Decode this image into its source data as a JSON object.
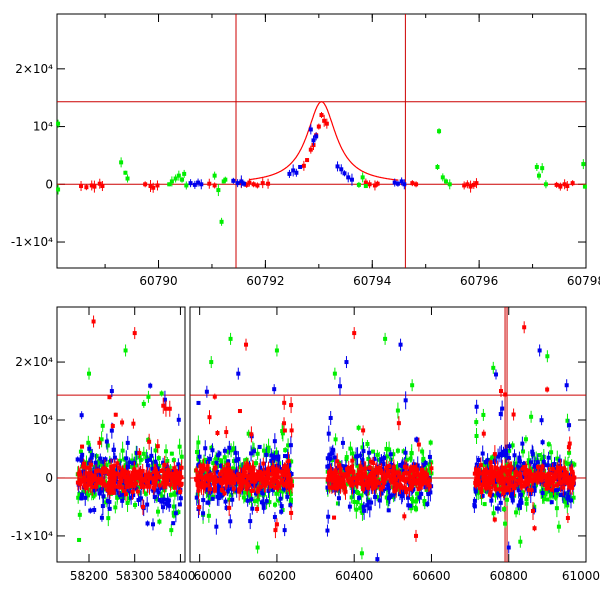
{
  "colors": {
    "red": "#ff0000",
    "green": "#00ee00",
    "blue": "#0000ee",
    "axis": "#000000",
    "guide": "#cc0000"
  },
  "chart_data": [
    {
      "id": "zoom",
      "type": "scatter",
      "title": "",
      "xlabel": "",
      "ylabel": "",
      "xlim": [
        60788.1,
        60798.0
      ],
      "ylim": [
        -14500,
        29500
      ],
      "x_ticks": [
        {
          "value": 60790,
          "label": "60790"
        },
        {
          "value": 60792,
          "label": "60792"
        },
        {
          "value": 60794,
          "label": "60794"
        },
        {
          "value": 60796,
          "label": "60796"
        },
        {
          "value": 60798,
          "label": "60798"
        }
      ],
      "y_ticks": [
        {
          "value": 20000,
          "label": "2×10⁴"
        },
        {
          "value": 10000,
          "label": "10⁴"
        },
        {
          "value": 0,
          "label": "0"
        },
        {
          "value": -10000,
          "label": "-1×10⁴"
        }
      ],
      "hlines": [
        0,
        14300
      ],
      "vlines": [
        60791.45,
        60794.62
      ],
      "model_curve": {
        "name": "microlensing fit",
        "t0": 60793.05,
        "peak": 14300,
        "baseline": 0,
        "tE": 0.42
      },
      "series": [
        {
          "name": "red",
          "points": [
            [
              60788.55,
              -300
            ],
            [
              60788.65,
              -500
            ],
            [
              60788.75,
              -200
            ],
            [
              60788.8,
              -400
            ],
            [
              60788.9,
              100
            ],
            [
              60788.95,
              -300
            ],
            [
              60789.75,
              0
            ],
            [
              60789.85,
              -300
            ],
            [
              60789.9,
              -600
            ],
            [
              60789.98,
              -200
            ],
            [
              60790.95,
              100
            ],
            [
              60791.05,
              -200
            ],
            [
              60791.55,
              200
            ],
            [
              60791.65,
              -100
            ],
            [
              60791.7,
              300
            ],
            [
              60791.78,
              0
            ],
            [
              60791.85,
              -200
            ],
            [
              60791.95,
              200
            ],
            [
              60792.05,
              100
            ],
            [
              60792.72,
              3200
            ],
            [
              60792.78,
              4200
            ],
            [
              60792.85,
              6000
            ],
            [
              60792.9,
              6800
            ],
            [
              60792.95,
              8500
            ],
            [
              60793.0,
              10000
            ],
            [
              60793.05,
              12000
            ],
            [
              60793.1,
              11000
            ],
            [
              60793.15,
              10500
            ],
            [
              60793.88,
              300
            ],
            [
              60793.95,
              0
            ],
            [
              60794.05,
              -200
            ],
            [
              60794.1,
              100
            ],
            [
              60794.75,
              200
            ],
            [
              60794.82,
              0
            ],
            [
              60795.72,
              -200
            ],
            [
              60795.78,
              0
            ],
            [
              60795.84,
              -400
            ],
            [
              60795.9,
              -100
            ],
            [
              60795.95,
              200
            ],
            [
              60797.45,
              -100
            ],
            [
              60797.52,
              -400
            ],
            [
              60797.6,
              0
            ],
            [
              60797.65,
              -300
            ],
            [
              60797.75,
              200
            ]
          ]
        },
        {
          "name": "green",
          "points": [
            [
              60788.12,
              10500
            ],
            [
              60788.12,
              -900
            ],
            [
              60789.3,
              3800
            ],
            [
              60789.38,
              2000
            ],
            [
              60789.42,
              1000
            ],
            [
              60790.2,
              0
            ],
            [
              60790.25,
              500
            ],
            [
              60790.32,
              1000
            ],
            [
              60790.38,
              1500
            ],
            [
              60790.44,
              800
            ],
            [
              60790.48,
              1800
            ],
            [
              60790.52,
              -200
            ],
            [
              60791.05,
              1500
            ],
            [
              60791.12,
              -1000
            ],
            [
              60791.18,
              -6500
            ],
            [
              60791.22,
              500
            ],
            [
              60791.25,
              800
            ],
            [
              60793.75,
              -100
            ],
            [
              60793.82,
              1200
            ],
            [
              60793.88,
              -300
            ],
            [
              60795.22,
              3000
            ],
            [
              60795.25,
              9200
            ],
            [
              60795.32,
              1200
            ],
            [
              60795.38,
              500
            ],
            [
              60795.45,
              0
            ],
            [
              60797.08,
              3000
            ],
            [
              60797.12,
              1500
            ],
            [
              60797.18,
              2800
            ],
            [
              60797.25,
              0
            ],
            [
              60797.95,
              3500
            ],
            [
              60797.98,
              -400
            ]
          ]
        },
        {
          "name": "blue",
          "points": [
            [
              60790.6,
              200
            ],
            [
              60790.68,
              -100
            ],
            [
              60790.74,
              300
            ],
            [
              60790.8,
              0
            ],
            [
              60791.4,
              600
            ],
            [
              60791.48,
              200
            ],
            [
              60791.55,
              500
            ],
            [
              60791.6,
              100
            ],
            [
              60792.45,
              1800
            ],
            [
              60792.52,
              2400
            ],
            [
              60792.58,
              2000
            ],
            [
              60792.65,
              3000
            ],
            [
              60792.85,
              9500
            ],
            [
              60792.9,
              7600
            ],
            [
              60792.95,
              8300
            ],
            [
              60793.35,
              3100
            ],
            [
              60793.42,
              2600
            ],
            [
              60793.48,
              1900
            ],
            [
              60793.55,
              1200
            ],
            [
              60793.62,
              800
            ],
            [
              60794.42,
              300
            ],
            [
              60794.48,
              100
            ],
            [
              60794.55,
              500
            ],
            [
              60794.6,
              0
            ]
          ]
        }
      ]
    },
    {
      "id": "full",
      "type": "scatter",
      "title": "",
      "xlabel": "",
      "ylabel": "",
      "xlim": [
        58130,
        61000
      ],
      "ylim": [
        -14500,
        29500
      ],
      "broken_axis": {
        "gap_after": 58410,
        "gap_resume": 59975
      },
      "segments": [
        [
          58130,
          58410
        ],
        [
          59975,
          61000
        ]
      ],
      "x_ticks": [
        {
          "value": 58200,
          "label": "58200",
          "segment": 0
        },
        {
          "value": 58300,
          "label": "58300",
          "segment": 0
        },
        {
          "value": 58400,
          "label": "58400",
          "segment": 0
        },
        {
          "value": 60000,
          "label": "60000",
          "segment": 1
        },
        {
          "value": 60200,
          "label": "60200",
          "segment": 1
        },
        {
          "value": 60400,
          "label": "60400",
          "segment": 1
        },
        {
          "value": 60600,
          "label": "60600",
          "segment": 1
        },
        {
          "value": 60800,
          "label": "60800",
          "segment": 1
        },
        {
          "value": 61000,
          "label": "61000",
          "segment": 1
        }
      ],
      "y_ticks": [
        {
          "value": 20000,
          "label": "2×10⁴"
        },
        {
          "value": 10000,
          "label": "10⁴"
        },
        {
          "value": 0,
          "label": "0"
        },
        {
          "value": -10000,
          "label": "-1×10⁴"
        }
      ],
      "hlines": [
        0,
        14300
      ],
      "vlines": [
        60793.05
      ],
      "seasons": [
        [
          58175,
          58405
        ],
        [
          59990,
          60240
        ],
        [
          60330,
          60600
        ],
        [
          60710,
          60970
        ]
      ],
      "series": [
        {
          "name": "green",
          "sample_points": [
            [
              58200,
              18000
            ],
            [
              58230,
              9000
            ],
            [
              58280,
              22000
            ],
            [
              58330,
              14000
            ],
            [
              58380,
              -9000
            ],
            [
              60030,
              20000
            ],
            [
              60080,
              24000
            ],
            [
              60150,
              -12000
            ],
            [
              60200,
              22000
            ],
            [
              60350,
              18000
            ],
            [
              60420,
              -13000
            ],
            [
              60480,
              24000
            ],
            [
              60550,
              16000
            ],
            [
              60760,
              19000
            ],
            [
              60830,
              -11000
            ],
            [
              60900,
              21000
            ]
          ]
        },
        {
          "name": "blue",
          "sample_points": [
            [
              58250,
              15000
            ],
            [
              58340,
              -8000
            ],
            [
              60100,
              18000
            ],
            [
              60220,
              -9000
            ],
            [
              60380,
              20000
            ],
            [
              60460,
              -14000
            ],
            [
              60520,
              23000
            ],
            [
              60800,
              -12000
            ],
            [
              60880,
              22000
            ],
            [
              60950,
              16000
            ]
          ]
        },
        {
          "name": "red",
          "sample_points": [
            [
              58210,
              27000
            ],
            [
              58300,
              25000
            ],
            [
              60120,
              23000
            ],
            [
              60200,
              -8000
            ],
            [
              60400,
              25000
            ],
            [
              60560,
              -10000
            ],
            [
              60780,
              15000
            ],
            [
              60840,
              26000
            ]
          ]
        }
      ]
    }
  ]
}
